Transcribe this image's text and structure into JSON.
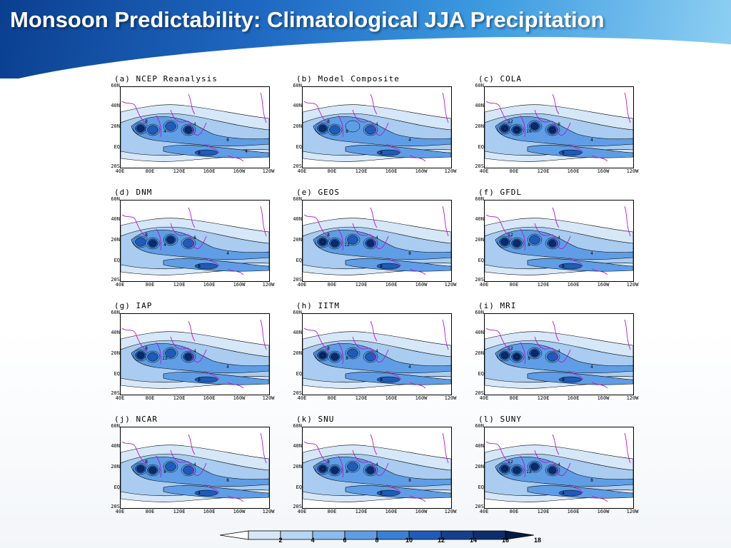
{
  "title": "Monsoon Predictability: Climatological JJA Precipitation",
  "panels": [
    {
      "label": "(a) NCEP Reanalysis",
      "palette": [
        "#d6e7f8",
        "#a9ccf0",
        "#5f9ee6",
        "#1f5bb8",
        "#0a2a6a"
      ],
      "contour_labels": [
        "8",
        "4",
        "4",
        "8",
        "8",
        "4"
      ],
      "peaks": [
        3,
        2,
        2,
        3
      ]
    },
    {
      "label": "(b) Model Composite",
      "palette": [
        "#d6e7f8",
        "#a9ccf0",
        "#5f9ee6",
        "#1f5bb8",
        "#0a2a6a"
      ],
      "contour_labels": [
        "8",
        "8",
        "4",
        "4",
        "8"
      ],
      "peaks": [
        3,
        2,
        1,
        2
      ]
    },
    {
      "label": "(c) COLA",
      "palette": [
        "#d6e7f8",
        "#a9ccf0",
        "#5f9ee6",
        "#1f5bb8",
        "#0a2a6a"
      ],
      "contour_labels": [
        "12",
        "16",
        "8",
        "4",
        "8"
      ],
      "peaks": [
        4,
        4,
        3,
        4
      ]
    },
    {
      "label": "(d) DNM",
      "palette": [
        "#d6e7f8",
        "#a9ccf0",
        "#5f9ee6",
        "#1f5bb8",
        "#0a2a6a"
      ],
      "contour_labels": [
        "8",
        "4",
        "8",
        "4",
        "8"
      ],
      "peaks": [
        2,
        3,
        3,
        2
      ]
    },
    {
      "label": "(e) GEOS",
      "palette": [
        "#d6e7f8",
        "#a9ccf0",
        "#5f9ee6",
        "#1f5bb8",
        "#0a2a6a"
      ],
      "contour_labels": [
        "8",
        "12",
        "4",
        "8",
        "8"
      ],
      "peaks": [
        4,
        3,
        2,
        3
      ]
    },
    {
      "label": "(f) GFDL",
      "palette": [
        "#d6e7f8",
        "#a9ccf0",
        "#5f9ee6",
        "#1f5bb8",
        "#0a2a6a"
      ],
      "contour_labels": [
        "12",
        "8",
        "4",
        "4",
        "8"
      ],
      "peaks": [
        3,
        3,
        2,
        3
      ]
    },
    {
      "label": "(g) IAP",
      "palette": [
        "#d6e7f8",
        "#a9ccf0",
        "#5f9ee6",
        "#1f5bb8",
        "#0a2a6a"
      ],
      "contour_labels": [
        "8",
        "12",
        "4",
        "4",
        "8"
      ],
      "peaks": [
        3,
        2,
        2,
        3
      ]
    },
    {
      "label": "(h) IITM",
      "palette": [
        "#d6e7f8",
        "#a9ccf0",
        "#5f9ee6",
        "#1f5bb8",
        "#0a2a6a"
      ],
      "contour_labels": [
        "8",
        "8",
        "4",
        "4",
        "8"
      ],
      "peaks": [
        4,
        3,
        2,
        2
      ]
    },
    {
      "label": "(i) MRI",
      "palette": [
        "#d6e7f8",
        "#a9ccf0",
        "#5f9ee6",
        "#1f5bb8",
        "#0a2a6a"
      ],
      "contour_labels": [
        "12",
        "8",
        "4",
        "4",
        "8"
      ],
      "peaks": [
        3,
        4,
        3,
        2
      ]
    },
    {
      "label": "(j) NCAR",
      "palette": [
        "#d6e7f8",
        "#a9ccf0",
        "#5f9ee6",
        "#1f5bb8",
        "#0a2a6a"
      ],
      "contour_labels": [
        "8",
        "8",
        "4",
        "8",
        "4"
      ],
      "peaks": [
        3,
        3,
        2,
        2
      ]
    },
    {
      "label": "(k) SNU",
      "palette": [
        "#d6e7f8",
        "#a9ccf0",
        "#5f9ee6",
        "#1f5bb8",
        "#0a2a6a"
      ],
      "contour_labels": [
        "8",
        "8",
        "4",
        "8",
        "8"
      ],
      "peaks": [
        4,
        3,
        2,
        3
      ]
    },
    {
      "label": "(l) SUNY",
      "palette": [
        "#d6e7f8",
        "#a9ccf0",
        "#5f9ee6",
        "#1f5bb8",
        "#0a2a6a"
      ],
      "contour_labels": [
        "12",
        "12",
        "4",
        "8",
        "4"
      ],
      "peaks": [
        4,
        3,
        3,
        3
      ]
    }
  ],
  "y_ticks": [
    "60N",
    "40N",
    "20N",
    "EQ",
    "20S"
  ],
  "x_ticks": [
    "40E",
    "80E",
    "120E",
    "160E",
    "160W",
    "120W"
  ],
  "colorbar": {
    "ticks": [
      "2",
      "4",
      "6",
      "8",
      "10",
      "12",
      "14",
      "16",
      "18"
    ],
    "colors": [
      "#ffffff",
      "#d6e7f8",
      "#b6d6f4",
      "#8cbbee",
      "#5f9ee6",
      "#3a7fd6",
      "#1f5bb8",
      "#153f8f",
      "#0d2e6e",
      "#061a45"
    ]
  }
}
